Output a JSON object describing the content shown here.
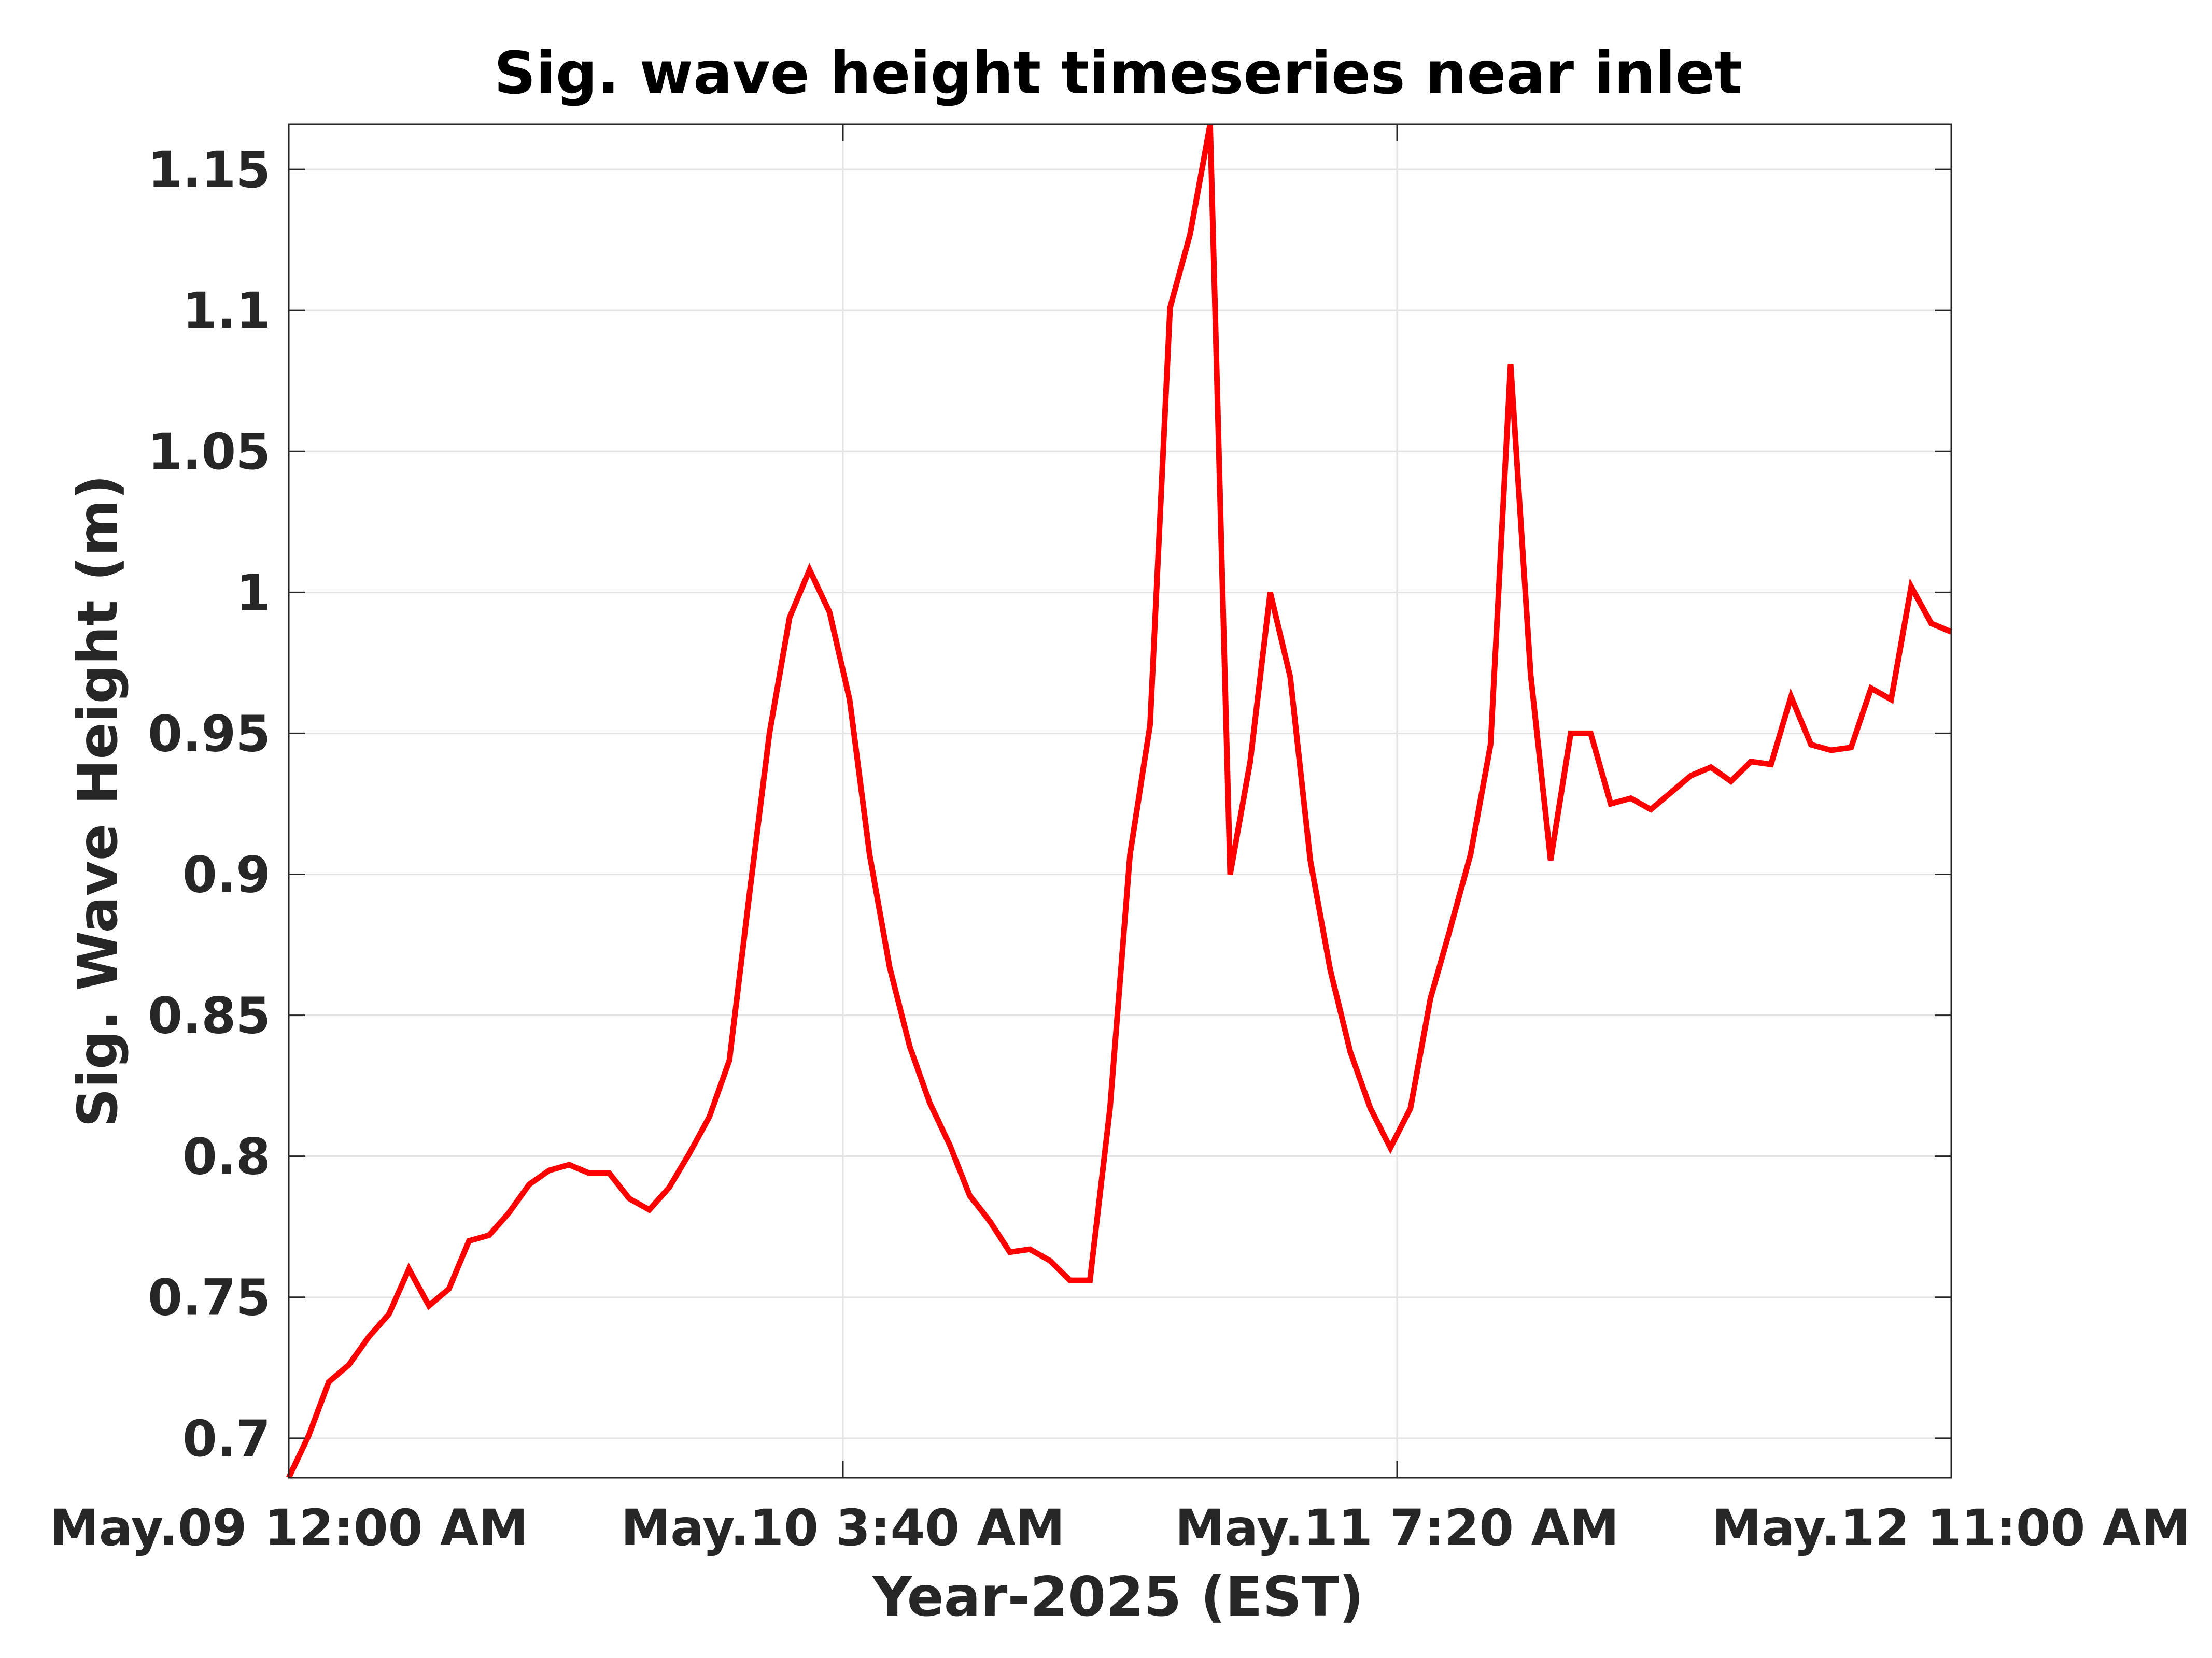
{
  "chart_data": {
    "type": "line",
    "title": "Sig. wave height timeseries near inlet",
    "xlabel": "Year-2025 (EST)",
    "ylabel": "Sig. Wave Height (m)",
    "ylim": [
      0.686,
      1.166
    ],
    "yticks": [
      0.7,
      0.75,
      0.8,
      0.85,
      0.9,
      0.95,
      1,
      1.05,
      1.1,
      1.15
    ],
    "ytick_labels": [
      "0.7",
      "0.75",
      "0.8",
      "0.85",
      "0.9",
      "0.95",
      "1",
      "1.05",
      "1.1",
      "1.15"
    ],
    "xlim": [
      "2025-05-09 00:00",
      "2025-05-12 11:00"
    ],
    "xticks": [
      "2025-05-09 00:00",
      "2025-05-10 03:40",
      "2025-05-11 07:20",
      "2025-05-12 11:00"
    ],
    "xtick_labels": [
      [
        "May.09",
        "12:00 AM"
      ],
      [
        "May.10",
        "3:40 AM"
      ],
      [
        "May.11",
        "7:20 AM"
      ],
      [
        "May.12",
        "11:00 AM"
      ]
    ],
    "grid": true,
    "series": [
      {
        "color": "#ff0000",
        "x_start": "2025-05-09 00:00",
        "x_step_minutes": 60,
        "values": [
          0.686,
          0.701,
          0.72,
          0.726,
          0.736,
          0.744,
          0.76,
          0.747,
          0.753,
          0.77,
          0.772,
          0.78,
          0.79,
          0.795,
          0.797,
          0.794,
          0.794,
          0.785,
          0.781,
          0.789,
          0.801,
          0.814,
          0.834,
          0.893,
          0.95,
          0.991,
          1.008,
          0.993,
          0.962,
          0.907,
          0.867,
          0.839,
          0.819,
          0.804,
          0.786,
          0.777,
          0.766,
          0.767,
          0.763,
          0.756,
          0.756,
          0.817,
          0.907,
          0.953,
          1.101,
          1.127,
          1.166,
          0.9,
          0.94,
          1,
          0.97,
          0.905,
          0.866,
          0.837,
          0.817,
          0.803,
          0.817,
          0.856,
          0.881,
          0.907,
          0.946,
          1.081,
          0.971,
          0.905,
          0.95,
          0.95,
          0.925,
          0.927,
          0.923,
          0.929,
          0.935,
          0.938,
          0.933,
          0.94,
          0.939,
          0.963,
          0.946,
          0.944,
          0.945,
          0.966,
          0.962,
          1.002,
          0.989,
          0.986
        ]
      }
    ]
  }
}
